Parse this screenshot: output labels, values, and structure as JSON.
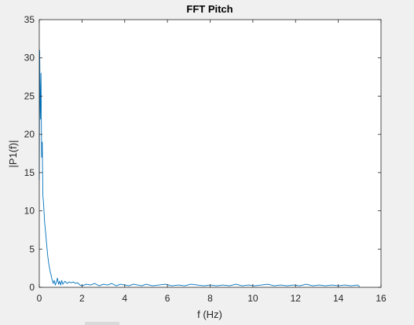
{
  "chart_data": {
    "type": "line",
    "title": "FFT Pitch",
    "xlabel": "f (Hz)",
    "ylabel": "|P1(f)|",
    "xlim": [
      0,
      16
    ],
    "ylim": [
      0,
      35
    ],
    "xticks": [
      0,
      2,
      4,
      6,
      8,
      10,
      12,
      14,
      16
    ],
    "yticks": [
      0,
      5,
      10,
      15,
      20,
      25,
      30,
      35
    ],
    "grid": false,
    "series": [
      {
        "name": "",
        "color": "#0072bd",
        "x": [
          0,
          0.02,
          0.05,
          0.08,
          0.11,
          0.14,
          0.17,
          0.2,
          0.25,
          0.3,
          0.35,
          0.4,
          0.45,
          0.5,
          0.55,
          0.6,
          0.65,
          0.7,
          0.75,
          0.8,
          0.85,
          0.9,
          0.95,
          1.0,
          1.05,
          1.1,
          1.2,
          1.3,
          1.4,
          1.5,
          1.6,
          1.7,
          1.8,
          1.9,
          2.0,
          2.2,
          2.4,
          2.6,
          2.8,
          3.0,
          3.2,
          3.4,
          3.6,
          3.8,
          4.0,
          4.2,
          4.4,
          4.6,
          4.8,
          5.0,
          5.3,
          5.6,
          5.9,
          6.2,
          6.5,
          6.8,
          7.1,
          7.4,
          7.7,
          8.0,
          8.3,
          8.6,
          8.9,
          9.2,
          9.5,
          9.8,
          10.1,
          10.4,
          10.7,
          11.0,
          11.3,
          11.6,
          11.9,
          12.2,
          12.5,
          12.8,
          13.1,
          13.4,
          13.7,
          14.0,
          14.3,
          14.6,
          14.9,
          15.0
        ],
        "y": [
          14,
          31,
          22,
          28,
          17,
          19,
          12,
          11,
          8.5,
          7,
          5.5,
          4,
          3,
          2.2,
          1.6,
          1.0,
          0.5,
          0.9,
          0.3,
          0.7,
          1.2,
          0.4,
          0.8,
          0.3,
          0.9,
          0.4,
          0.8,
          0.5,
          0.7,
          0.6,
          0.7,
          0.5,
          0.6,
          0.3,
          0.2,
          0.4,
          0.3,
          0.5,
          0.2,
          0.4,
          0.3,
          0.5,
          0.2,
          0.4,
          0.3,
          0.2,
          0.4,
          0.3,
          0.2,
          0.4,
          0.2,
          0.3,
          0.4,
          0.2,
          0.3,
          0.2,
          0.4,
          0.3,
          0.2,
          0.3,
          0.2,
          0.3,
          0.2,
          0.4,
          0.2,
          0.3,
          0.2,
          0.3,
          0.4,
          0.2,
          0.3,
          0.2,
          0.3,
          0.2,
          0.4,
          0.2,
          0.3,
          0.2,
          0.3,
          0.2,
          0.3,
          0.2,
          0.3,
          0.1
        ]
      }
    ]
  }
}
